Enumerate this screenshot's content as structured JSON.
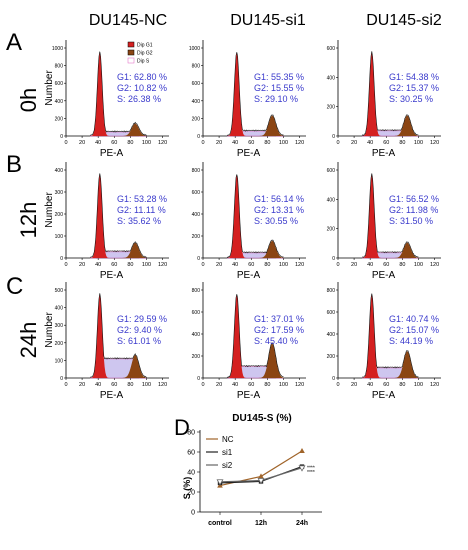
{
  "col_titles": [
    "DU145-NC",
    "DU145-si1",
    "DU145-si2"
  ],
  "row_letters": [
    "A",
    "B",
    "C"
  ],
  "row_labels": [
    "0h",
    "12h",
    "24h"
  ],
  "ylabel": "Number",
  "xlabel": "PE-A",
  "legend": [
    "Dip G1",
    "Dip G2",
    "Dip S"
  ],
  "colors": {
    "g1": "#d42020",
    "g2": "#8b4513",
    "s": "#c9c0ee",
    "stat_text": "#3a3acc",
    "s_outline": "#e060c0"
  },
  "x_ticks": [
    0,
    20,
    40,
    60,
    80,
    100,
    120
  ],
  "histograms": [
    {
      "row": "0h",
      "group": "DU145-NC",
      "ymax": 1000,
      "yticks": [
        0,
        200,
        400,
        600,
        800,
        1000
      ],
      "stats": [
        "G1: 62.80 %",
        "G2: 10.82 %",
        "S: 26.38 %"
      ]
    },
    {
      "row": "0h",
      "group": "DU145-si1",
      "ymax": 1000,
      "yticks": [
        0,
        200,
        400,
        600,
        800,
        1000
      ],
      "stats": [
        "G1: 55.35 %",
        "G2: 15.55 %",
        "S: 29.10 %"
      ]
    },
    {
      "row": "0h",
      "group": "DU145-si2",
      "ymax": 600,
      "yticks": [
        0,
        200,
        400,
        600
      ],
      "stats": [
        "G1: 54.38 %",
        "G2: 15.37 %",
        "S: 30.25 %"
      ]
    },
    {
      "row": "12h",
      "group": "DU145-NC",
      "ymax": 400,
      "yticks": [
        0,
        100,
        200,
        300,
        400
      ],
      "stats": [
        "G1: 53.28 %",
        "G2: 11.11 %",
        "S: 35.62 %"
      ]
    },
    {
      "row": "12h",
      "group": "DU145-si1",
      "ymax": 800,
      "yticks": [
        0,
        200,
        400,
        600,
        800
      ],
      "stats": [
        "G1: 56.14 %",
        "G2: 13.31 %",
        "S: 30.55 %"
      ]
    },
    {
      "row": "12h",
      "group": "DU145-si2",
      "ymax": 600,
      "yticks": [
        0,
        200,
        400,
        600
      ],
      "stats": [
        "G1: 56.52 %",
        "G2: 11.98 %",
        "S: 31.50 %"
      ]
    },
    {
      "row": "24h",
      "group": "DU145-NC",
      "ymax": 500,
      "yticks": [
        0,
        100,
        200,
        300,
        400,
        500
      ],
      "stats": [
        "G1: 29.59 %",
        "G2: 9.40 %",
        "S: 61.01 %"
      ]
    },
    {
      "row": "24h",
      "group": "DU145-si1",
      "ymax": 800,
      "yticks": [
        0,
        200,
        400,
        600,
        800
      ],
      "stats": [
        "G1: 37.01 %",
        "G2: 17.59 %",
        "S: 45.40 %"
      ]
    },
    {
      "row": "24h",
      "group": "DU145-si2",
      "ymax": 800,
      "yticks": [
        0,
        200,
        400,
        600,
        800
      ],
      "stats": [
        "G1: 40.74 %",
        "G2: 15.07 %",
        "S: 44.19 %"
      ]
    }
  ],
  "chart_data": {
    "type": "line",
    "panel_letter": "D",
    "title": "DU145-S (%)",
    "ylabel": "S (%)",
    "categories": [
      "control",
      "12h",
      "24h"
    ],
    "ylim": [
      0,
      80
    ],
    "yticks": [
      0,
      20,
      40,
      60,
      80
    ],
    "series": [
      {
        "name": "NC",
        "values": [
          26.38,
          35.62,
          61.01
        ],
        "color": "#a0642a",
        "marker": "triangle"
      },
      {
        "name": "si1",
        "values": [
          29.1,
          30.55,
          45.4
        ],
        "color": "#222222",
        "marker": "square"
      },
      {
        "name": "si2",
        "values": [
          30.25,
          31.5,
          44.19
        ],
        "color": "#666666",
        "marker": "triangle-down"
      }
    ],
    "significance": [
      "****",
      "****"
    ]
  }
}
